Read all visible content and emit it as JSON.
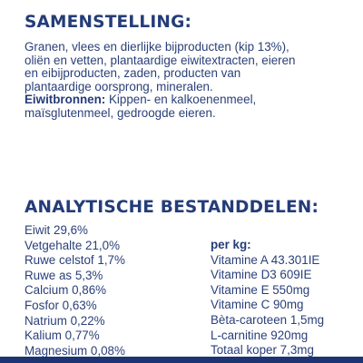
{
  "composition": {
    "heading": "SAMENSTELLING:",
    "lines": [
      "Granen, vlees en dierlijke bijproducten (kip 13%),",
      "oliën en vetten, plantaardige eiwitextracten, eieren",
      "en eibijproducten, zaden, producten van",
      "plantaardige oorsprong, mineralen."
    ],
    "protein_label": "Eiwitbronnen:",
    "protein_lines": [
      " Kippen- en kalkoenenmeel,",
      "maïsglutenmeel, gedroogde eieren."
    ]
  },
  "analytic": {
    "heading": "ANALYTISCHE BESTANDDELEN:",
    "items": [
      "Eiwit 29,6%",
      "Vetgehalte 21,0%",
      "Ruwe celstof 1,7%",
      "Ruwe as 5,3%",
      "Calcium 0,86%",
      "Fosfor 0,63%",
      "Natrium 0,22%",
      "Kalium 0,77%",
      "Magnesium 0,08%"
    ]
  },
  "vitamins": {
    "label": "per kg:",
    "items": [
      "Vitamine A 43.301IE",
      "Vitamine D3 609IE",
      "Vitamine E 550mg",
      "Vitamine C 90mg",
      "Bèta-caroteen 1,5mg",
      "L-carnitine 920mg",
      "Totaal koper 7,3mg"
    ]
  },
  "colors": {
    "heading": "#243c78",
    "text": "#2a3f78",
    "band": "#1c3472"
  }
}
